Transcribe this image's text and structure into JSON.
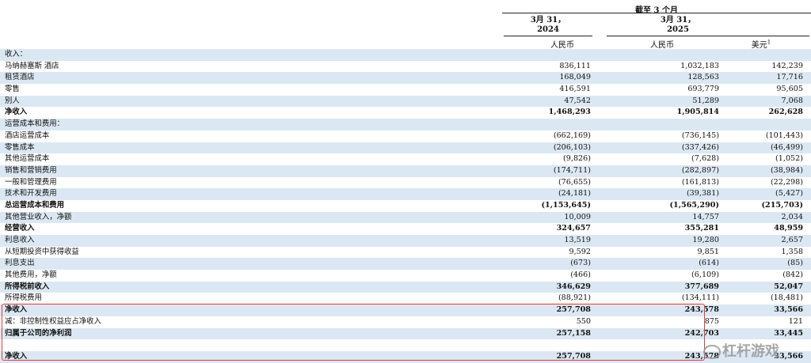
{
  "header": {
    "period": "截至 3 个月",
    "col1_date": "3月 31，",
    "col1_year": "2024",
    "col2_date": "3月 31，",
    "col2_year": "2025",
    "cur1": "人民币",
    "cur2": "人民币",
    "cur3": "美元",
    "cur3_note": "1"
  },
  "rows": [
    {
      "label": "收入：",
      "v1": "",
      "v2": "",
      "v3": "",
      "bold": false
    },
    {
      "label": "马纳赫塞斯 酒店",
      "v1": "836,111",
      "v2": "1,032,183",
      "v3": "142,239",
      "bold": false
    },
    {
      "label": "租赁酒店",
      "v1": "168,049",
      "v2": "128,563",
      "v3": "17,716",
      "bold": false
    },
    {
      "label": "零售",
      "v1": "416,591",
      "v2": "693,779",
      "v3": "95,605",
      "bold": false
    },
    {
      "label": "别人",
      "v1": "47,542",
      "v2": "51,289",
      "v3": "7,068",
      "bold": false
    },
    {
      "label": "净收入",
      "v1": "1,468,293",
      "v2": "1,905,814",
      "v3": "262,628",
      "bold": true
    },
    {
      "label": "运营成本和费用：",
      "v1": "",
      "v2": "",
      "v3": "",
      "bold": false
    },
    {
      "label": "酒店运营成本",
      "v1": "(662,169)",
      "v2": "(736,145)",
      "v3": "(101,443)",
      "bold": false
    },
    {
      "label": "零售成本",
      "v1": "(206,103)",
      "v2": "(337,426)",
      "v3": "(46,499)",
      "bold": false
    },
    {
      "label": "其他运营成本",
      "v1": "(9,826)",
      "v2": "(7,628)",
      "v3": "(1,052)",
      "bold": false
    },
    {
      "label": "销售和营销费用",
      "v1": "(174,711)",
      "v2": "(282,897)",
      "v3": "(38,984)",
      "bold": false
    },
    {
      "label": "一般和管理费用",
      "v1": "(76,655)",
      "v2": "(161,813)",
      "v3": "(22,298)",
      "bold": false
    },
    {
      "label": "技术和开发费用",
      "v1": "(24,181)",
      "v2": "(39,381)",
      "v3": "(5,427)",
      "bold": false
    },
    {
      "label": "总运营成本和费用",
      "v1": "(1,153,645)",
      "v2": "(1,565,290)",
      "v3": "(215,703)",
      "bold": true
    },
    {
      "label": "其他营业收入，净额",
      "v1": "10,009",
      "v2": "14,757",
      "v3": "2,034",
      "bold": false
    },
    {
      "label": "经营收入",
      "v1": "324,657",
      "v2": "355,281",
      "v3": "48,959",
      "bold": true
    },
    {
      "label": "利息收入",
      "v1": "13,519",
      "v2": "19,280",
      "v3": "2,657",
      "bold": false
    },
    {
      "label": "从短期投资中获得收益",
      "v1": "9,592",
      "v2": "9,851",
      "v3": "1,358",
      "bold": false
    },
    {
      "label": "利息支出",
      "v1": "(673)",
      "v2": "(614)",
      "v3": "(85)",
      "bold": false
    },
    {
      "label": "其他费用，净额",
      "v1": "(466)",
      "v2": "(6,109)",
      "v3": "(842)",
      "bold": false
    },
    {
      "label": "所得税前收入",
      "v1": "346,629",
      "v2": "377,689",
      "v3": "52,047",
      "bold": true
    },
    {
      "label": "所得税费用",
      "v1": "(88,921)",
      "v2": "(134,111)",
      "v3": "(18,481)",
      "bold": false
    },
    {
      "label": "净收入",
      "v1": "257,708",
      "v2": "243,578",
      "v3": "33,566",
      "bold": true
    },
    {
      "label": "减：非控制性权益应占净收入",
      "v1": "550",
      "v2": "875",
      "v3": "121",
      "bold": false
    },
    {
      "label": "归属于公司的净利润",
      "v1": "257,158",
      "v2": "242,703",
      "v3": "33,445",
      "bold": true
    },
    {
      "label": "",
      "v1": "",
      "v2": "",
      "v3": "",
      "bold": false
    },
    {
      "label": "净收入",
      "v1": "257,708",
      "v2": "243,578",
      "v3": "33,566",
      "bold": true
    }
  ],
  "watermark": "杠杆游戏",
  "colors": {
    "row_shade": "#dbe8f3",
    "highlight_box": "#e23b3b"
  }
}
